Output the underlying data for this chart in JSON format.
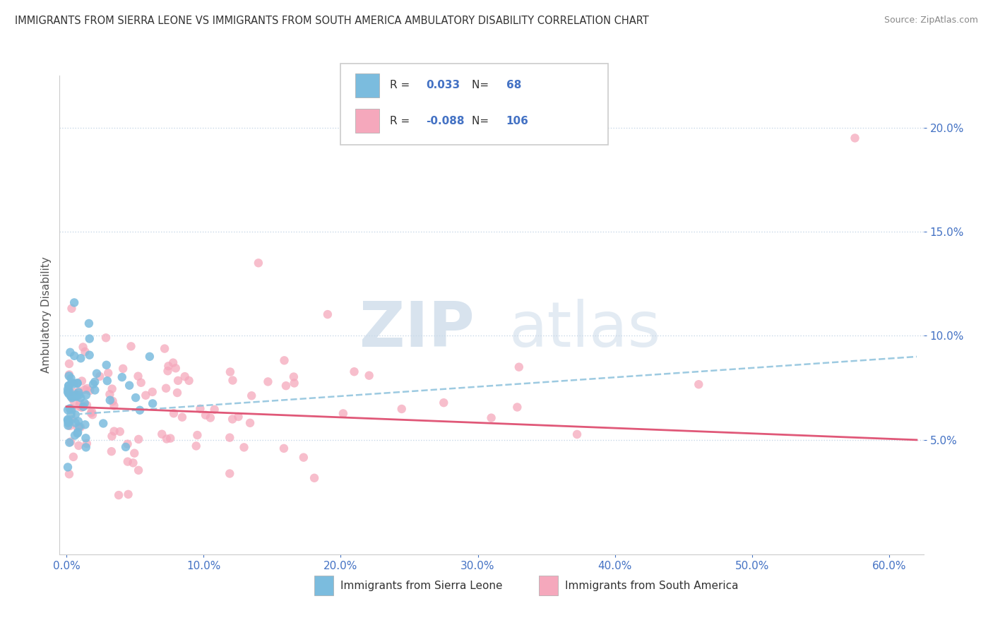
{
  "title": "IMMIGRANTS FROM SIERRA LEONE VS IMMIGRANTS FROM SOUTH AMERICA AMBULATORY DISABILITY CORRELATION CHART",
  "source": "Source: ZipAtlas.com",
  "ylabel": "Ambulatory Disability",
  "legend_label1": "Immigrants from Sierra Leone",
  "legend_label2": "Immigrants from South America",
  "R1": 0.033,
  "N1": 68,
  "R2": -0.088,
  "N2": 106,
  "color1": "#7bbcde",
  "color2": "#f5a8bc",
  "trendline1_color": "#92c5de",
  "trendline2_color": "#e05878",
  "xlim": [
    -0.005,
    0.625
  ],
  "ylim": [
    -0.005,
    0.225
  ],
  "xticks": [
    0.0,
    0.1,
    0.2,
    0.3,
    0.4,
    0.5,
    0.6
  ],
  "yticks": [
    0.05,
    0.1,
    0.15,
    0.2
  ],
  "ytick_labels_right": [
    "5.0%",
    "10.0%",
    "15.0%",
    "20.0%"
  ],
  "xtick_labels": [
    "0.0%",
    "10.0%",
    "20.0%",
    "30.0%",
    "40.0%",
    "50.0%",
    "60.0%"
  ],
  "watermark_zip": "ZIP",
  "watermark_atlas": "atlas",
  "seed": 42
}
